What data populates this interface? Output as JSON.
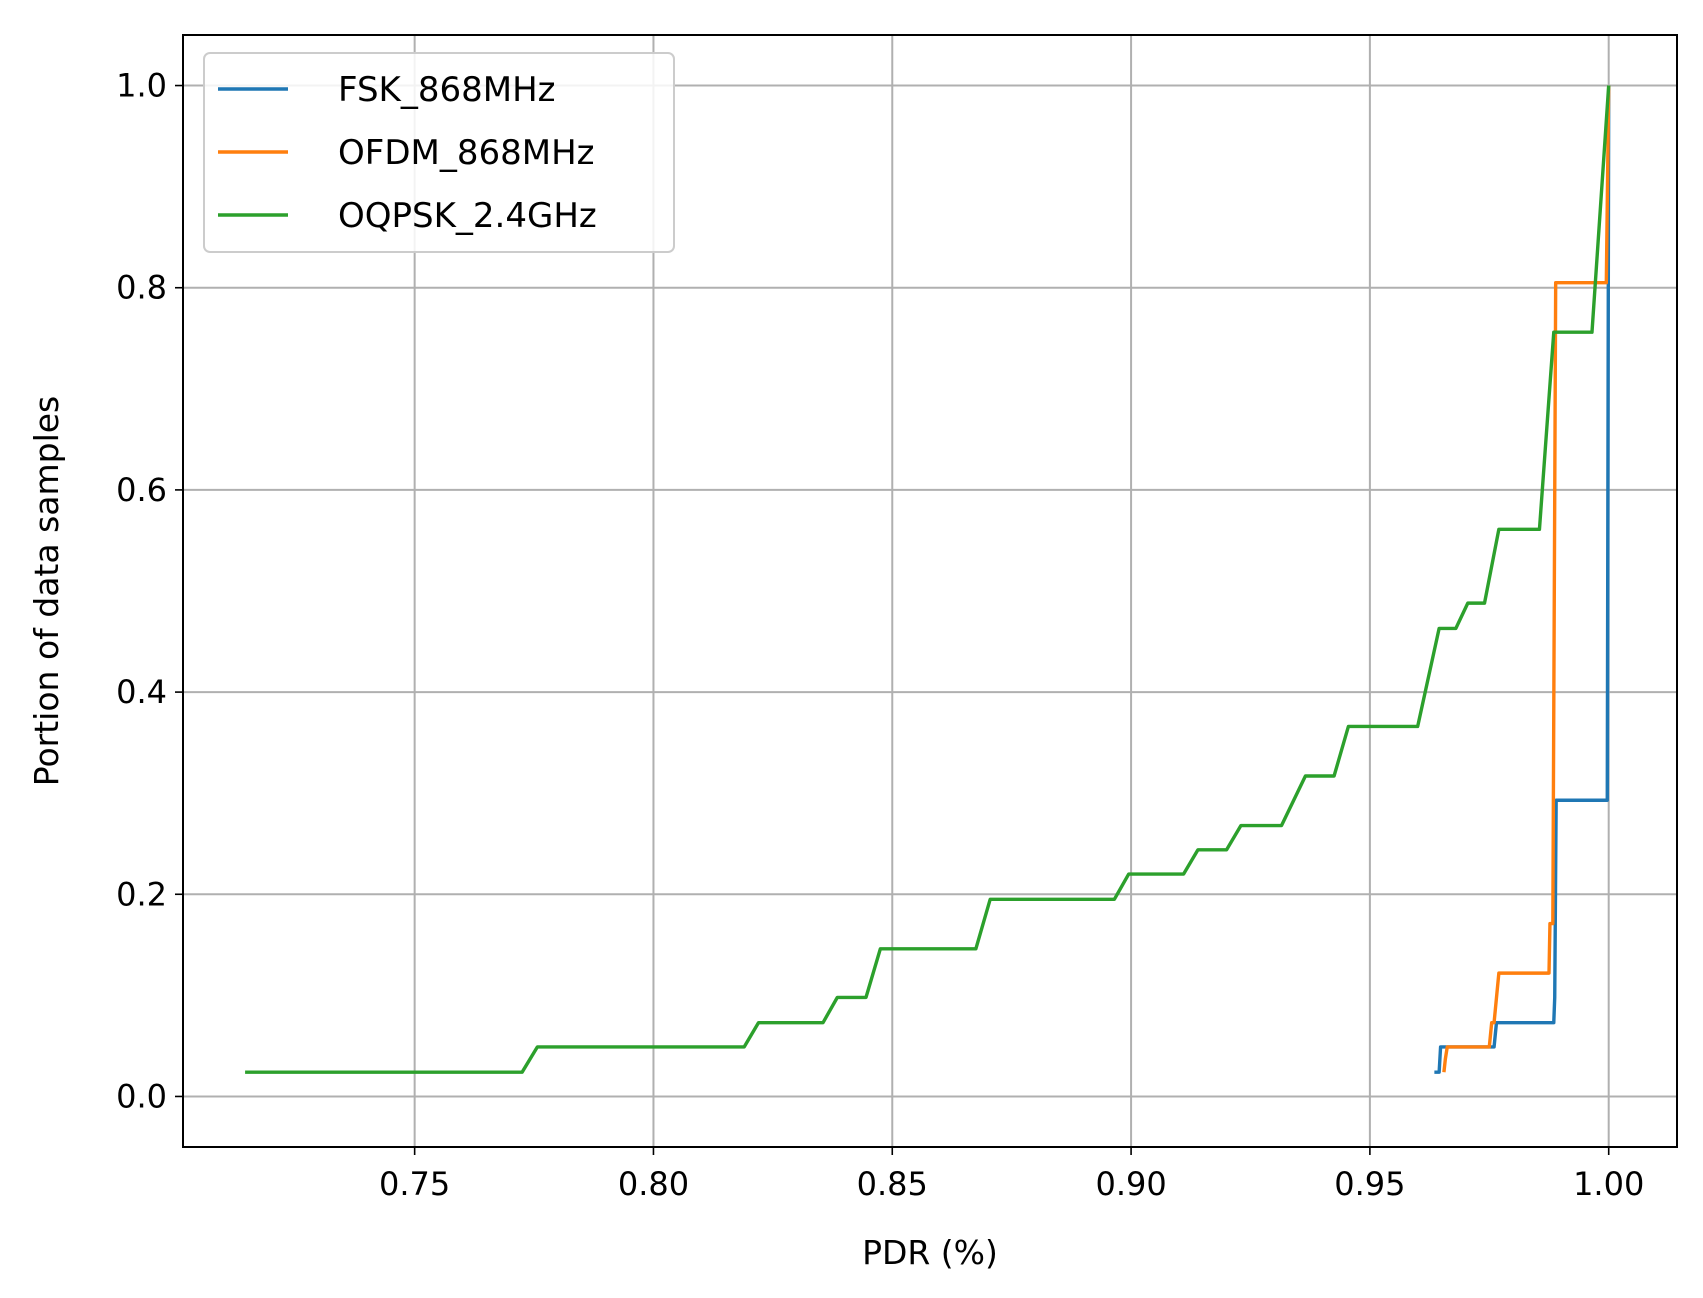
{
  "chart_data": {
    "type": "line",
    "title": "",
    "xlabel": "PDR (%)",
    "ylabel": "Portion of data samples",
    "xlim": [
      0.7015,
      1.0143
    ],
    "ylim": [
      -0.05,
      1.05
    ],
    "xticks": [
      0.75,
      0.8,
      0.85,
      0.9,
      0.95,
      1.0
    ],
    "xtick_labels": [
      "0.75",
      "0.80",
      "0.85",
      "0.90",
      "0.95",
      "1.00"
    ],
    "yticks": [
      0.0,
      0.2,
      0.4,
      0.6,
      0.8,
      1.0
    ],
    "ytick_labels": [
      "0.0",
      "0.2",
      "0.4",
      "0.6",
      "0.8",
      "1.0"
    ],
    "grid": true,
    "legend_position": "upper-left",
    "series": [
      {
        "name": "FSK_868MHz",
        "color": "#1f77b4",
        "x": [
          0.9635,
          0.9645,
          0.9648,
          0.976,
          0.9765,
          0.9885,
          0.9887,
          0.989,
          0.9997,
          1.0
        ],
        "y": [
          0.024,
          0.024,
          0.049,
          0.049,
          0.073,
          0.073,
          0.098,
          0.293,
          0.293,
          1.0
        ]
      },
      {
        "name": "OFDM_868MHz",
        "color": "#ff7f0e",
        "x": [
          0.9655,
          0.9658,
          0.9662,
          0.975,
          0.9755,
          0.976,
          0.977,
          0.9875,
          0.9877,
          0.9883,
          0.9889,
          0.9893,
          0.9995,
          1.0
        ],
        "y": [
          0.024,
          0.037,
          0.049,
          0.049,
          0.073,
          0.073,
          0.122,
          0.122,
          0.171,
          0.171,
          0.805,
          0.805,
          0.805,
          1.0
        ]
      },
      {
        "name": "OQPSK_2.4GHz",
        "color": "#2ca02c",
        "x": [
          0.7145,
          0.7725,
          0.7757,
          0.819,
          0.822,
          0.8355,
          0.8385,
          0.8445,
          0.8475,
          0.8675,
          0.8705,
          0.8965,
          0.8995,
          0.911,
          0.914,
          0.92,
          0.923,
          0.9315,
          0.9365,
          0.9425,
          0.9455,
          0.96,
          0.9645,
          0.968,
          0.9705,
          0.974,
          0.977,
          0.9855,
          0.9885,
          0.9965,
          1.0
        ],
        "y": [
          0.024,
          0.024,
          0.049,
          0.049,
          0.073,
          0.073,
          0.098,
          0.098,
          0.146,
          0.146,
          0.195,
          0.195,
          0.22,
          0.22,
          0.244,
          0.244,
          0.268,
          0.268,
          0.317,
          0.317,
          0.366,
          0.366,
          0.463,
          0.463,
          0.488,
          0.488,
          0.561,
          0.561,
          0.756,
          0.756,
          1.0
        ]
      }
    ]
  }
}
